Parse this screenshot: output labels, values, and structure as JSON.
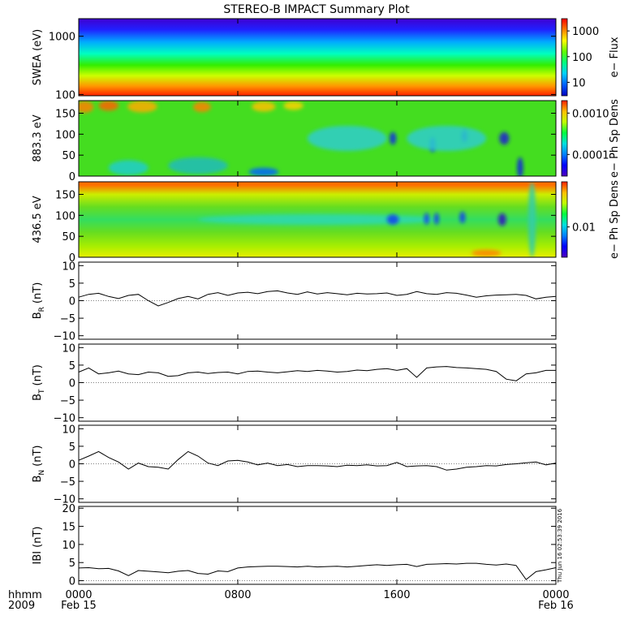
{
  "title": "STEREO-B IMPACT Summary Plot",
  "stamp": "Thu Jun 16 02:53:39 2016",
  "x_axis": {
    "label_line1": "hhmm",
    "label_line2": "2009",
    "ticks": [
      {
        "hour": 0,
        "label": "0000",
        "sublabel": "Feb 15"
      },
      {
        "hour": 8,
        "label": "0800",
        "sublabel": ""
      },
      {
        "hour": 16,
        "label": "1600",
        "sublabel": ""
      },
      {
        "hour": 24,
        "label": "0000",
        "sublabel": "Feb 16"
      }
    ],
    "range_hours": [
      0,
      24
    ]
  },
  "chart_data": [
    {
      "type": "heatmap",
      "id": "swea",
      "ylabel": "SWEA (eV)",
      "ylog": true,
      "ylim": [
        95,
        2000
      ],
      "yticks": [
        {
          "v": 100,
          "l": "100"
        },
        {
          "v": 1000,
          "l": "1000"
        }
      ],
      "colorbar": {
        "label": "e− Flux",
        "log": true,
        "range": [
          3,
          3000
        ],
        "ticks": [
          {
            "v": 10,
            "l": "10"
          },
          {
            "v": 100,
            "l": "100"
          },
          {
            "v": 1000,
            "l": "1000"
          }
        ]
      },
      "rows": [
        [
          95,
          "#ff2000"
        ],
        [
          140,
          "#ff9900"
        ],
        [
          210,
          "#ccff00"
        ],
        [
          320,
          "#33ee00"
        ],
        [
          500,
          "#00ffc0"
        ],
        [
          800,
          "#00aaff"
        ],
        [
          1300,
          "#2020ff"
        ],
        [
          2000,
          "#4000d0"
        ]
      ]
    },
    {
      "type": "heatmap",
      "id": "pad883",
      "ylabel": "883.3 eV",
      "ylim": [
        0,
        180
      ],
      "yticks": [
        {
          "v": 0,
          "l": "0"
        },
        {
          "v": 50,
          "l": "50"
        },
        {
          "v": 100,
          "l": "100"
        },
        {
          "v": 150,
          "l": "150"
        }
      ],
      "colorbar": {
        "label": "e− Ph Sp Dens",
        "log": true,
        "range": [
          3e-05,
          0.002
        ],
        "ticks": [
          {
            "v": 0.0001,
            "l": "0.0001"
          },
          {
            "v": 0.001,
            "l": "0.0010"
          }
        ]
      },
      "base_color": "#44dd20",
      "blobs": [
        {
          "t": 0.3,
          "pa": 165,
          "dt": 0.9,
          "dpa": 14,
          "c": "#ff8000"
        },
        {
          "t": 1.5,
          "pa": 168,
          "dt": 1.0,
          "dpa": 12,
          "c": "#ff6000"
        },
        {
          "t": 3.2,
          "pa": 166,
          "dt": 1.5,
          "dpa": 14,
          "c": "#ffaa00"
        },
        {
          "t": 6.2,
          "pa": 165,
          "dt": 0.9,
          "dpa": 12,
          "c": "#ff8000"
        },
        {
          "t": 9.3,
          "pa": 166,
          "dt": 1.2,
          "dpa": 12,
          "c": "#ffc000"
        },
        {
          "t": 10.8,
          "pa": 168,
          "dt": 1.0,
          "dpa": 10,
          "c": "#ffd000"
        },
        {
          "t": 2.5,
          "pa": 20,
          "dt": 2.0,
          "dpa": 18,
          "c": "#22cccc"
        },
        {
          "t": 6.0,
          "pa": 25,
          "dt": 3.0,
          "dpa": 20,
          "c": "#22bbbb"
        },
        {
          "t": 9.3,
          "pa": 10,
          "dt": 1.5,
          "dpa": 10,
          "c": "#0066ff"
        },
        {
          "t": 15.8,
          "pa": 90,
          "dt": 0.35,
          "dpa": 15,
          "c": "#1030e0"
        },
        {
          "t": 17.8,
          "pa": 75,
          "dt": 0.3,
          "dpa": 18,
          "c": "#1040f0"
        },
        {
          "t": 19.4,
          "pa": 95,
          "dt": 0.3,
          "dpa": 14,
          "c": "#1030e0"
        },
        {
          "t": 21.4,
          "pa": 90,
          "dt": 0.5,
          "dpa": 15,
          "c": "#2020d0"
        },
        {
          "t": 22.2,
          "pa": 20,
          "dt": 0.3,
          "dpa": 25,
          "c": "#1020e0"
        },
        {
          "t": 13.5,
          "pa": 90,
          "dt": 4.0,
          "dpa": 30,
          "c": "#30cccc"
        },
        {
          "t": 18.5,
          "pa": 90,
          "dt": 4.0,
          "dpa": 30,
          "c": "#30cccc"
        }
      ]
    },
    {
      "type": "heatmap",
      "id": "pad436",
      "ylabel": "436.5 eV",
      "ylim": [
        0,
        180
      ],
      "yticks": [
        {
          "v": 0,
          "l": "0"
        },
        {
          "v": 50,
          "l": "50"
        },
        {
          "v": 100,
          "l": "100"
        },
        {
          "v": 150,
          "l": "150"
        }
      ],
      "colorbar": {
        "label": "e− Ph Sp Dens",
        "log": true,
        "range": [
          0.003,
          0.06
        ],
        "ticks": [
          {
            "v": 0.01,
            "l": "0.01"
          }
        ]
      },
      "bands": [
        {
          "pa": 172,
          "c": "#ff7000"
        },
        {
          "pa": 150,
          "c": "#ccee00"
        },
        {
          "pa": 120,
          "c": "#66dd20"
        },
        {
          "pa": 90,
          "c": "#33dd60"
        },
        {
          "pa": 60,
          "c": "#66dd20"
        },
        {
          "pa": 25,
          "c": "#aaee00"
        },
        {
          "pa": 5,
          "c": "#ddee00"
        }
      ],
      "blobs": [
        {
          "t": 12,
          "pa": 90,
          "dt": 12,
          "dpa": 12,
          "c": "#30d8b0"
        },
        {
          "t": 15.8,
          "pa": 90,
          "dt": 0.6,
          "dpa": 12,
          "c": "#1040f0"
        },
        {
          "t": 17.5,
          "pa": 92,
          "dt": 0.25,
          "dpa": 14,
          "c": "#1040f0"
        },
        {
          "t": 18.0,
          "pa": 92,
          "dt": 0.25,
          "dpa": 14,
          "c": "#1040f0"
        },
        {
          "t": 19.3,
          "pa": 95,
          "dt": 0.3,
          "dpa": 14,
          "c": "#1040f0"
        },
        {
          "t": 21.3,
          "pa": 90,
          "dt": 0.4,
          "dpa": 15,
          "c": "#3010c0"
        },
        {
          "t": 20.5,
          "pa": 10,
          "dt": 1.5,
          "dpa": 8,
          "c": "#ff8000"
        },
        {
          "t": 22.8,
          "pa": 90,
          "dt": 0.4,
          "dpa": 90,
          "c": "#33ccaa"
        }
      ]
    },
    {
      "type": "line",
      "id": "br",
      "ylabel": "B",
      "ysub": "R",
      "yunit": "(nT)",
      "ylim": [
        -11,
        11
      ],
      "yticks": [
        {
          "v": -10,
          "l": "−10"
        },
        {
          "v": -5,
          "l": "−5"
        },
        {
          "v": 0,
          "l": "0"
        },
        {
          "v": 5,
          "l": "5"
        },
        {
          "v": 10,
          "l": "10"
        }
      ],
      "x": [
        0,
        0.5,
        1,
        1.5,
        2,
        2.5,
        3,
        3.5,
        4,
        4.5,
        5,
        5.5,
        6,
        6.5,
        7,
        7.5,
        8,
        8.5,
        9,
        9.5,
        10,
        10.5,
        11,
        11.5,
        12,
        12.5,
        13,
        13.5,
        14,
        14.5,
        15,
        15.5,
        16,
        16.5,
        17,
        17.5,
        18,
        18.5,
        19,
        19.5,
        20,
        20.5,
        21,
        21.5,
        22,
        22.5,
        23,
        23.5,
        24
      ],
      "y": [
        1,
        1.8,
        2.1,
        1.2,
        0.6,
        1.5,
        1.8,
        0,
        -1.5,
        -0.5,
        0.6,
        1.2,
        0.5,
        1.8,
        2.3,
        1.5,
        2.2,
        2.4,
        2.0,
        2.6,
        2.8,
        2.2,
        1.8,
        2.5,
        1.9,
        2.3,
        2.0,
        1.7,
        2.1,
        1.9,
        2.0,
        2.2,
        1.5,
        1.8,
        2.6,
        2.0,
        1.8,
        2.3,
        2.1,
        1.6,
        1.0,
        1.4,
        1.6,
        1.7,
        1.8,
        1.5,
        0.5,
        1.0,
        1.2
      ]
    },
    {
      "type": "line",
      "id": "bt",
      "ylabel": "B",
      "ysub": "T",
      "yunit": "(nT)",
      "ylim": [
        -11,
        11
      ],
      "yticks": [
        {
          "v": -10,
          "l": "−10"
        },
        {
          "v": -5,
          "l": "−5"
        },
        {
          "v": 0,
          "l": "0"
        },
        {
          "v": 5,
          "l": "5"
        },
        {
          "v": 10,
          "l": "10"
        }
      ],
      "x": [
        0,
        0.5,
        1,
        1.5,
        2,
        2.5,
        3,
        3.5,
        4,
        4.5,
        5,
        5.5,
        6,
        6.5,
        7,
        7.5,
        8,
        8.5,
        9,
        9.5,
        10,
        10.5,
        11,
        11.5,
        12,
        12.5,
        13,
        13.5,
        14,
        14.5,
        15,
        15.5,
        16,
        16.5,
        17,
        17.5,
        18,
        18.5,
        19,
        19.5,
        20,
        20.5,
        21,
        21.5,
        22,
        22.5,
        23,
        23.5,
        24
      ],
      "y": [
        3,
        4.2,
        2.5,
        2.8,
        3.3,
        2.5,
        2.3,
        3.0,
        2.8,
        1.8,
        2.0,
        2.8,
        3.0,
        2.6,
        2.9,
        3.0,
        2.5,
        3.2,
        3.3,
        3.0,
        2.8,
        3.1,
        3.4,
        3.2,
        3.5,
        3.3,
        3.0,
        3.2,
        3.6,
        3.4,
        3.8,
        4.0,
        3.5,
        4.0,
        1.5,
        4.2,
        4.5,
        4.6,
        4.3,
        4.2,
        4.0,
        3.8,
        3.2,
        1.0,
        0.5,
        2.5,
        2.8,
        3.5,
        3.5
      ]
    },
    {
      "type": "line",
      "id": "bn",
      "ylabel": "B",
      "ysub": "N",
      "yunit": "(nT)",
      "ylim": [
        -11,
        11
      ],
      "yticks": [
        {
          "v": -10,
          "l": "−10"
        },
        {
          "v": -5,
          "l": "−5"
        },
        {
          "v": 0,
          "l": "0"
        },
        {
          "v": 5,
          "l": "5"
        },
        {
          "v": 10,
          "l": "10"
        }
      ],
      "x": [
        0,
        0.5,
        1,
        1.5,
        2,
        2.5,
        3,
        3.5,
        4,
        4.5,
        5,
        5.5,
        6,
        6.5,
        7,
        7.5,
        8,
        8.5,
        9,
        9.5,
        10,
        10.5,
        11,
        11.5,
        12,
        12.5,
        13,
        13.5,
        14,
        14.5,
        15,
        15.5,
        16,
        16.5,
        17,
        17.5,
        18,
        18.5,
        19,
        19.5,
        20,
        20.5,
        21,
        21.5,
        22,
        22.5,
        23,
        23.5,
        24
      ],
      "y": [
        1,
        2.2,
        3.5,
        1.8,
        0.5,
        -1.5,
        0.2,
        -0.8,
        -1.0,
        -1.5,
        1.2,
        3.5,
        2.2,
        0.2,
        -0.5,
        0.8,
        1.0,
        0.5,
        -0.3,
        0.2,
        -0.5,
        -0.2,
        -0.8,
        -0.5,
        -0.5,
        -0.6,
        -0.8,
        -0.4,
        -0.5,
        -0.3,
        -0.6,
        -0.5,
        0.4,
        -0.8,
        -0.6,
        -0.5,
        -0.8,
        -1.8,
        -1.5,
        -1.0,
        -0.8,
        -0.5,
        -0.6,
        -0.2,
        0.0,
        0.3,
        0.5,
        -0.3,
        0.2
      ]
    },
    {
      "type": "line",
      "id": "bmag",
      "ylabel": "IBI",
      "ysub": "",
      "yunit": "(nT)",
      "ylim": [
        -1,
        20.5
      ],
      "yticks": [
        {
          "v": 0,
          "l": "0"
        },
        {
          "v": 5,
          "l": "5"
        },
        {
          "v": 10,
          "l": "10"
        },
        {
          "v": 15,
          "l": "15"
        },
        {
          "v": 20,
          "l": "20"
        }
      ],
      "x": [
        0,
        0.5,
        1,
        1.5,
        2,
        2.5,
        3,
        3.5,
        4,
        4.5,
        5,
        5.5,
        6,
        6.5,
        7,
        7.5,
        8,
        8.5,
        9,
        9.5,
        10,
        10.5,
        11,
        11.5,
        12,
        12.5,
        13,
        13.5,
        14,
        14.5,
        15,
        15.5,
        16,
        16.5,
        17,
        17.5,
        18,
        18.5,
        19,
        19.5,
        20,
        20.5,
        21,
        21.5,
        22,
        22.5,
        23,
        23.5,
        24
      ],
      "y": [
        3.5,
        3.6,
        3.3,
        3.4,
        2.7,
        1.4,
        2.8,
        2.6,
        2.4,
        2.2,
        2.6,
        2.8,
        2.0,
        1.8,
        2.7,
        2.5,
        3.5,
        3.8,
        3.9,
        4.0,
        4.0,
        3.9,
        3.8,
        4.0,
        3.8,
        3.9,
        4.0,
        3.8,
        4.0,
        4.2,
        4.4,
        4.2,
        4.4,
        4.5,
        3.9,
        4.5,
        4.6,
        4.7,
        4.6,
        4.8,
        4.8,
        4.5,
        4.3,
        4.6,
        4.2,
        0.3,
        2.5,
        3.0,
        3.6
      ]
    }
  ]
}
